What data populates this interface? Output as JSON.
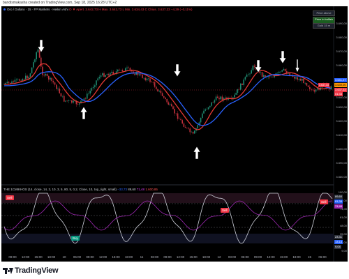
{
  "window": {
    "title": "bandismakasha created on TradingView.com, Sep 18, 2025 16:28 UTC+2"
  },
  "colors": {
    "background": "#000000",
    "bull_candle": "#1f8a70",
    "bear_candle": "#c2303b",
    "ma_red": "#e53935",
    "ma_blue": "#2962ff",
    "osc_white": "#cfd2dc",
    "osc_purple": "#9c27b0",
    "sell_tag": "#f23645",
    "buy_tag": "#089981"
  },
  "main_legend": {
    "symbol": "Oro / Dollaro · 15 · FP Markets · Heikin Ashi",
    "ohlc": "O ▼ Apert. 3.642,73  H Max. 3.642,73  L Min. 3.634,43  C Chius. 3.637,33  −4,29 (−0,11%)"
  },
  "status_boxes": {
    "box1": "Price above",
    "box2": "Price in bullish zone",
    "box3": "Gold 15 m"
  },
  "price_axis": {
    "labels": [
      "3.690,00",
      "3.680,00",
      "3.670,00",
      "3.660,00",
      "3.650,00",
      "3.640,00",
      "3.630,00",
      "3.620,00",
      "3.610,00",
      "3.600,00",
      "3.590,00",
      "3.580,00"
    ],
    "tag_current": "3.637,33",
    "tag_current_time": "01:33",
    "tag_ma1": "3.641,27",
    "tag_ma2": "3.639,00"
  },
  "osc_legend": {
    "name": "THE 1CMIKHOS (14, close, 14, 3, 10, 3, 5, 80, 5, 0,2, Close, 10, top_right, small)",
    "val1": "−33,73",
    "val2": "89,60",
    "val3": "71,48",
    "val4": "1.600,85"
  },
  "osc_axis": {
    "labels": [
      "100,00",
      "87,00",
      "74,00",
      "61,00",
      "48,00",
      "35,00",
      "22,00",
      "9,00"
    ],
    "badges": [
      "89,60",
      "81,38",
      "71,48",
      "23,31",
      "13,13",
      "9,04"
    ]
  },
  "osc_tags": {
    "sell1": "Sell",
    "sell2": "Sell",
    "sell3": "Sell",
    "buy1": "Buy"
  },
  "time_axis": {
    "labels": [
      "09:00",
      "12:00",
      "15:00",
      "18:00",
      "10",
      "06:00",
      "09:00",
      "12:00",
      "15:00",
      "18:00",
      "11",
      "06:00",
      "09:00",
      "12:00",
      "15:00",
      "18:00",
      "12",
      "03:00",
      "06:00",
      "09:00",
      "12:00",
      "15:00",
      "18:00",
      "15",
      "06:00"
    ]
  },
  "footer": {
    "brand": "TradingView"
  },
  "icons": {
    "down_arrow": "down-arrow-icon",
    "up_arrow": "up-arrow-icon"
  }
}
